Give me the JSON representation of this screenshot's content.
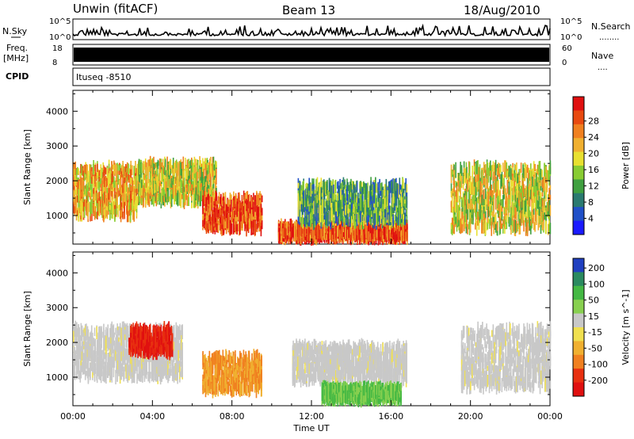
{
  "header": {
    "site": "Unwin (fitACF)",
    "beam": "Beam 13",
    "date": "18/Aug/2010"
  },
  "aux": {
    "nsky_label": "N.Sky",
    "nsearch_label": "N.Search",
    "nsearch_dots": "........",
    "freq_label_1": "Freq.",
    "freq_label_2": "[MHz]",
    "nave_label": "Nave",
    "nave_dots": "....",
    "cpid_label": "CPID",
    "cpid_value": "Ituseq  -8510",
    "noise_ticks_left": [
      "10^5",
      "10^0"
    ],
    "noise_ticks_right": [
      "10^5",
      "10^0"
    ],
    "freq_ticks": [
      "18",
      "8"
    ],
    "nave_ticks": [
      "60",
      "0"
    ]
  },
  "chart_data": [
    {
      "type": "heatmap",
      "title": "",
      "parameter": "Power",
      "ylabel": "Slant Range [km]",
      "xlabel": "",
      "xlim": [
        "00:00",
        "24:00"
      ],
      "ylim": [
        180,
        4600
      ],
      "y_ticks": [
        1000,
        2000,
        3000,
        4000
      ],
      "x_ticks": [
        "00:00",
        "04:00",
        "08:00",
        "12:00",
        "16:00",
        "20:00",
        "00:00"
      ],
      "colorbar": {
        "label": "Power [dB]",
        "ticks": [
          "4",
          "8",
          "12",
          "16",
          "20",
          "24",
          "28"
        ],
        "colors": [
          "#1a1aff",
          "#2050c8",
          "#2a7a70",
          "#40a040",
          "#88cc33",
          "#e8e030",
          "#f0b030",
          "#f08020",
          "#e84a10",
          "#e01010"
        ]
      },
      "regions": [
        {
          "t_start": 0.0,
          "t_end": 3.2,
          "r_min": 1000,
          "r_max": 2400,
          "level": "medium-high"
        },
        {
          "t_start": 3.2,
          "t_end": 7.2,
          "r_min": 1400,
          "r_max": 2500,
          "level": "medium"
        },
        {
          "t_start": 6.5,
          "t_end": 9.5,
          "r_min": 600,
          "r_max": 1500,
          "level": "high"
        },
        {
          "t_start": 10.3,
          "t_end": 16.8,
          "r_min": 350,
          "r_max": 700,
          "level": "high"
        },
        {
          "t_start": 11.3,
          "t_end": 16.8,
          "r_min": 800,
          "r_max": 1900,
          "level": "low-medium"
        },
        {
          "t_start": 19.0,
          "t_end": 24.0,
          "r_min": 600,
          "r_max": 2400,
          "level": "medium"
        }
      ]
    },
    {
      "type": "heatmap",
      "title": "",
      "parameter": "Velocity",
      "ylabel": "Slant Range [km]",
      "xlabel": "Time UT",
      "xlim": [
        "00:00",
        "24:00"
      ],
      "ylim": [
        180,
        4600
      ],
      "y_ticks": [
        1000,
        2000,
        3000,
        4000
      ],
      "x_ticks": [
        "00:00",
        "04:00",
        "08:00",
        "12:00",
        "16:00",
        "20:00",
        "00:00"
      ],
      "colorbar": {
        "label": "Velocity [m s^-1]",
        "ticks": [
          "200",
          "100",
          "50",
          "15",
          "-15",
          "-50",
          "-100",
          "-200"
        ],
        "colors": [
          "#2040c0",
          "#2a8a60",
          "#44b844",
          "#88d050",
          "#c8c8c8",
          "#f0e050",
          "#f0b030",
          "#f08020",
          "#e83010",
          "#e01010"
        ]
      },
      "regions": [
        {
          "t_start": 0.0,
          "t_end": 5.5,
          "r_min": 1000,
          "r_max": 2400,
          "velocity": "near zero (ground scatter)"
        },
        {
          "t_start": 2.8,
          "t_end": 5.0,
          "r_min": 1700,
          "r_max": 2400,
          "velocity": "-100 to -200"
        },
        {
          "t_start": 6.5,
          "t_end": 9.5,
          "r_min": 600,
          "r_max": 1600,
          "velocity": "-15 to -50"
        },
        {
          "t_start": 11.0,
          "t_end": 16.8,
          "r_min": 900,
          "r_max": 1900,
          "velocity": "near zero (ground scatter)"
        },
        {
          "t_start": 12.5,
          "t_end": 16.5,
          "r_min": 350,
          "r_max": 700,
          "velocity": "15 to 100"
        },
        {
          "t_start": 19.5,
          "t_end": 24.0,
          "r_min": 700,
          "r_max": 2400,
          "velocity": "near zero (ground scatter)"
        }
      ]
    }
  ]
}
